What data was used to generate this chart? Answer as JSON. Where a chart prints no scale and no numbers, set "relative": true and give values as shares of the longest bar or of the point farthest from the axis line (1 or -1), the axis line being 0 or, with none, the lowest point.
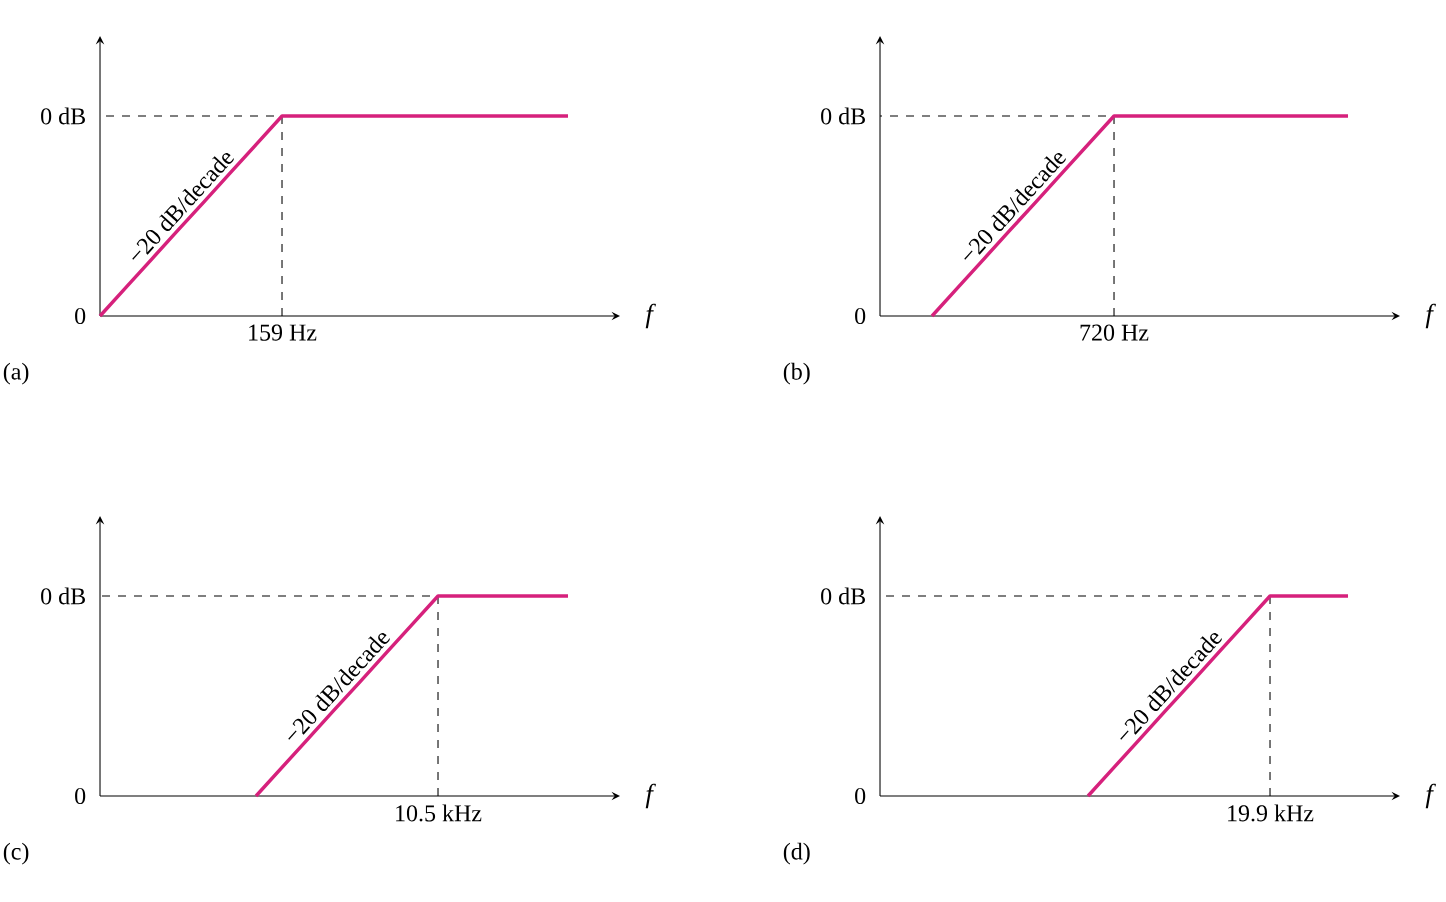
{
  "chart_data": [
    {
      "type": "line",
      "relative": true,
      "title": "(a)",
      "xlabel": "f",
      "categories": [
        null,
        null,
        null,
        null,
        null,
        null,
        null,
        null,
        null,
        null,
        null,
        null,
        null,
        null,
        null,
        null,
        null,
        null,
        null
      ],
      "values": [
        0,
        0.143,
        0.286,
        0.429,
        0.571,
        0.714,
        0.857,
        1,
        1,
        1,
        1,
        1,
        1,
        1,
        1,
        1,
        1,
        1,
        1
      ],
      "color": "#d6217c",
      "annotations": [
        "−20 dB/decade",
        "0 dB",
        "0",
        "159 Hz"
      ]
    },
    {
      "type": "line",
      "relative": true,
      "title": "(b)",
      "xlabel": "f",
      "categories": [
        null,
        null,
        null,
        null,
        null,
        null,
        null,
        null,
        null,
        null,
        null,
        null,
        null,
        null,
        null,
        null,
        null,
        null,
        null
      ],
      "values": [
        null,
        null,
        0,
        0.143,
        0.286,
        0.429,
        0.571,
        0.714,
        0.857,
        1,
        1,
        1,
        1,
        1,
        1,
        1,
        1,
        1,
        1
      ],
      "color": "#d6217c",
      "annotations": [
        "−20 dB/decade",
        "0 dB",
        "0",
        "720 Hz"
      ]
    },
    {
      "type": "line",
      "relative": true,
      "title": "(c)",
      "xlabel": "f",
      "categories": [
        null,
        null,
        null,
        null,
        null,
        null,
        null,
        null,
        null,
        null,
        null,
        null,
        null,
        null,
        null,
        null,
        null,
        null,
        null
      ],
      "values": [
        null,
        null,
        null,
        null,
        null,
        null,
        0,
        0.143,
        0.286,
        0.429,
        0.571,
        0.714,
        0.857,
        1,
        1,
        1,
        1,
        1,
        1
      ],
      "color": "#d6217c",
      "annotations": [
        "−20 dB/decade",
        "0 dB",
        "0",
        "10.5 kHz"
      ]
    },
    {
      "type": "line",
      "relative": true,
      "title": "(d)",
      "xlabel": "f",
      "categories": [
        null,
        null,
        null,
        null,
        null,
        null,
        null,
        null,
        null,
        null,
        null,
        null,
        null,
        null,
        null,
        null,
        null,
        null,
        null
      ],
      "values": [
        null,
        null,
        null,
        null,
        null,
        null,
        null,
        null,
        0,
        0.143,
        0.286,
        0.429,
        0.571,
        0.714,
        0.857,
        1,
        1,
        1,
        1
      ],
      "color": "#d6217c",
      "annotations": [
        "−20 dB/decade",
        "0 dB",
        "0",
        "19.9 kHz"
      ]
    }
  ]
}
